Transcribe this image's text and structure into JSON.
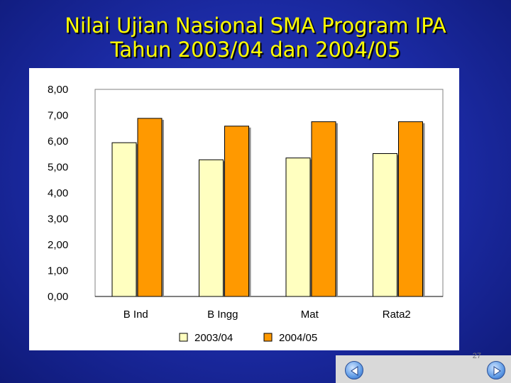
{
  "slide": {
    "title_line1": "Nilai Ujian Nasional SMA Program IPA",
    "title_line2": "Tahun 2003/04 dan 2004/05",
    "page_number": "27"
  },
  "nav": {
    "prev_icon": "arrow-left-icon",
    "next_icon": "arrow-right-icon"
  },
  "colors": {
    "series1": "#ffffc0",
    "series2": "#ff9900"
  },
  "chart_data": {
    "type": "bar",
    "categories": [
      "B Ind",
      "B Ingg",
      "Mat",
      "Rata2"
    ],
    "series": [
      {
        "name": "2003/04",
        "values": [
          5.94,
          5.28,
          5.35,
          5.52
        ]
      },
      {
        "name": "2004/05",
        "values": [
          6.88,
          6.58,
          6.75,
          6.75
        ]
      }
    ],
    "ylim": [
      0,
      8
    ],
    "yticks": [
      "0,00",
      "1,00",
      "2,00",
      "3,00",
      "4,00",
      "5,00",
      "6,00",
      "7,00",
      "8,00"
    ],
    "legend_position": "bottom",
    "grid": false
  }
}
